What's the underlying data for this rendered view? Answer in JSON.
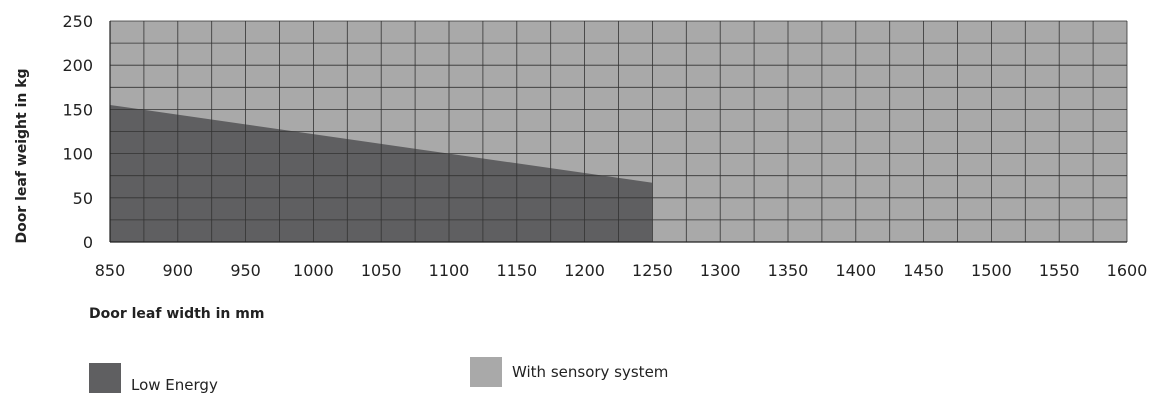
{
  "chart_data": {
    "type": "area",
    "xlabel": "Door leaf width in mm",
    "ylabel": "Door leaf weight in kg",
    "xlim": [
      850,
      1600
    ],
    "ylim": [
      0,
      250
    ],
    "x_ticks": [
      "850",
      "900",
      "950",
      "1000",
      "1050",
      "1100",
      "1150",
      "1200",
      "1250",
      "1300",
      "1350",
      "1400",
      "1450",
      "1500",
      "1550",
      "1600"
    ],
    "y_ticks": [
      "0",
      "50",
      "100",
      "150",
      "200",
      "250"
    ],
    "grid": true,
    "series": [
      {
        "name": "With sensory system",
        "color": "#a9a9a9",
        "x": [
          850,
          1600
        ],
        "y": [
          250,
          250
        ]
      },
      {
        "name": "Low Energy",
        "color": "#5f5f61",
        "x": [
          850,
          1250
        ],
        "y": [
          155,
          67
        ]
      }
    ],
    "legend": [
      {
        "label": "Low Energy",
        "color": "#5f5f61"
      },
      {
        "label": "With sensory system",
        "color": "#a9a9a9"
      }
    ]
  }
}
